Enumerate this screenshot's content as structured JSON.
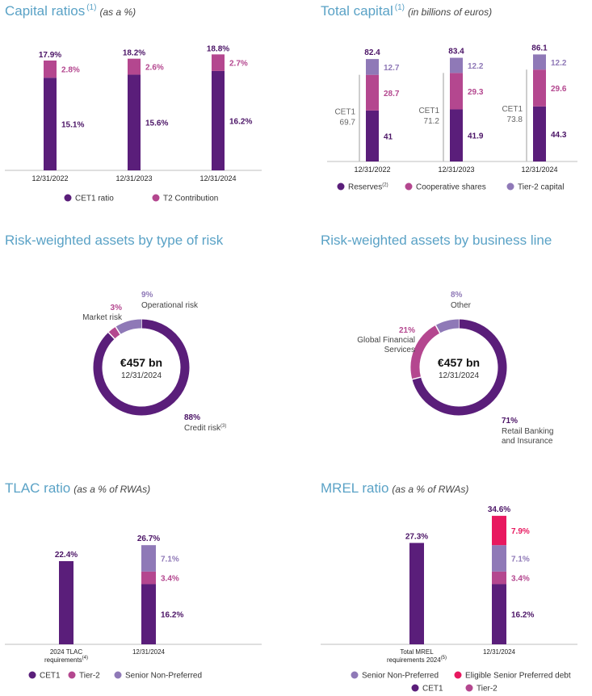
{
  "colors": {
    "cet1": "#5a1e7a",
    "t2": "#b4478f",
    "tier2cap": "#8f79b7",
    "snp": "#8f79b7",
    "esp": "#e8185f",
    "title": "#5aa2c6",
    "value_dark": "#4b1466",
    "value_light": "#8f79b7",
    "value_pink": "#b4478f"
  },
  "panels": {
    "capital_ratios": {
      "title": "Capital ratios",
      "sup": "(1)",
      "subtitle": "(as a %)"
    },
    "total_capital": {
      "title": "Total capital",
      "sup": "(1)",
      "subtitle": "(in billions of euros)"
    },
    "rwa_risk": {
      "title": "Risk-weighted assets by type of risk",
      "sup": "",
      "subtitle": ""
    },
    "rwa_business": {
      "title": "Risk-weighted assets by business line",
      "sup": "",
      "subtitle": ""
    },
    "tlac": {
      "title": "TLAC ratio",
      "sup": "",
      "subtitle": "(as a % of RWAs)"
    },
    "mrel": {
      "title": "MREL ratio",
      "sup": "",
      "subtitle": "(as a % of RWAs)"
    }
  },
  "chart_data": [
    {
      "id": "capital_ratios",
      "type": "bar",
      "stacked": true,
      "categories": [
        "12/31/2022",
        "12/31/2023",
        "12/31/2024"
      ],
      "series": [
        {
          "name": "CET1 ratio",
          "values": [
            15.1,
            15.6,
            16.2
          ],
          "labels": [
            "15.1%",
            "15.6%",
            "16.2%"
          ]
        },
        {
          "name": "T2 Contribution",
          "values": [
            2.8,
            2.6,
            2.7
          ],
          "labels": [
            "2.8%",
            "2.6%",
            "2.7%"
          ]
        }
      ],
      "totals": [
        "17.9%",
        "18.2%",
        "18.8%"
      ],
      "legend": "bottom"
    },
    {
      "id": "total_capital",
      "type": "bar",
      "stacked": true,
      "categories": [
        "12/31/2022",
        "12/31/2023",
        "12/31/2024"
      ],
      "series": [
        {
          "name": "Reserves",
          "values": [
            41,
            41.9,
            44.3
          ],
          "labels": [
            "41",
            "41.9",
            "44.3"
          ]
        },
        {
          "name": "Cooperative shares",
          "values": [
            28.7,
            29.3,
            29.6
          ],
          "labels": [
            "28.7",
            "29.3",
            "29.6"
          ]
        },
        {
          "name": "Tier-2 capital",
          "values": [
            12.7,
            12.2,
            12.2
          ],
          "labels": [
            "12.7",
            "12.2",
            "12.2"
          ]
        }
      ],
      "totals": [
        "82.4",
        "83.4",
        "86.1"
      ],
      "cet1_label": "CET1",
      "cet1_values": [
        "69.7",
        "71.2",
        "73.8"
      ],
      "legend_notes": [
        "(2)",
        "",
        ""
      ],
      "legend": "bottom"
    },
    {
      "id": "rwa_risk",
      "type": "pie",
      "center_value": "€457 bn",
      "center_date": "12/31/2024",
      "slices": [
        {
          "name": "Credit risk",
          "value": 88,
          "label": "88%",
          "note": "(3)"
        },
        {
          "name": "Market risk",
          "value": 3,
          "label": "3%",
          "note": ""
        },
        {
          "name": "Operational risk",
          "value": 9,
          "label": "9%",
          "note": ""
        }
      ]
    },
    {
      "id": "rwa_business",
      "type": "pie",
      "center_value": "€457 bn",
      "center_date": "12/31/2024",
      "slices": [
        {
          "name": "Retail Banking and Insurance",
          "value": 71,
          "label": "71%",
          "lines": [
            "Retail Banking",
            "and Insurance"
          ]
        },
        {
          "name": "Global Financial Services",
          "value": 21,
          "label": "21%",
          "lines": [
            "Global Financial",
            "Services"
          ]
        },
        {
          "name": "Other",
          "value": 8,
          "label": "8%",
          "lines": [
            "Other"
          ]
        }
      ]
    },
    {
      "id": "tlac",
      "type": "bar",
      "stacked": true,
      "categories": [
        "2024 TLAC requirements",
        "12/31/2024"
      ],
      "category_lines": [
        [
          "2024 TLAC",
          "requirements"
        ],
        [
          "12/31/2024"
        ]
      ],
      "category_notes": [
        "(4)",
        ""
      ],
      "requirement": {
        "value": 22.4,
        "label": "22.4%"
      },
      "series": [
        {
          "name": "CET1",
          "value": 16.2,
          "label": "16.2%"
        },
        {
          "name": "Tier-2",
          "value": 3.4,
          "label": "3.4%"
        },
        {
          "name": "Senior Non-Preferred",
          "value": 7.1,
          "label": "7.1%"
        }
      ],
      "total": "26.7%",
      "legend": "bottom"
    },
    {
      "id": "mrel",
      "type": "bar",
      "stacked": true,
      "categories": [
        "Total MREL requirements 2024",
        "12/31/2024"
      ],
      "category_lines": [
        [
          "Total MREL",
          "requirements 2024"
        ],
        [
          "12/31/2024"
        ]
      ],
      "category_notes": [
        "(5)",
        ""
      ],
      "requirement": {
        "value": 27.3,
        "label": "27.3%"
      },
      "series": [
        {
          "name": "CET1",
          "value": 16.2,
          "label": "16.2%"
        },
        {
          "name": "Tier-2",
          "value": 3.4,
          "label": "3.4%"
        },
        {
          "name": "Senior Non-Preferred",
          "value": 7.1,
          "label": "7.1%"
        },
        {
          "name": "Eligible Senior Preferred debt",
          "value": 7.9,
          "label": "7.9%"
        }
      ],
      "total": "34.6%",
      "legend": "bottom"
    }
  ]
}
